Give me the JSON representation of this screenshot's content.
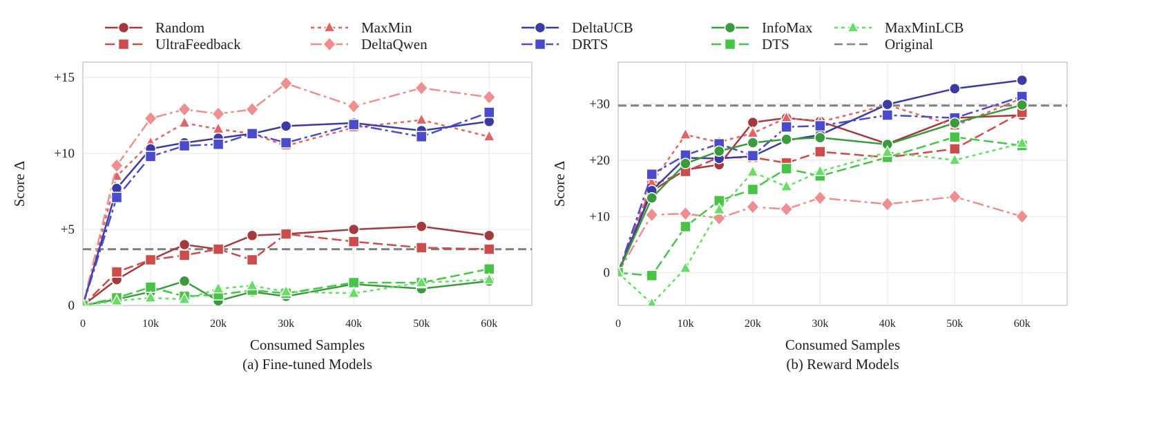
{
  "legend": {
    "entries": [
      {
        "name": "Random",
        "color": "#a33a3e",
        "dash": "",
        "marker": "circle"
      },
      {
        "name": "UltraFeedback",
        "color": "#cc4b4b",
        "dash": "14,6",
        "marker": "square"
      },
      {
        "name": "MaxMin",
        "color": "#e06464",
        "dash": "5,5",
        "marker": "triangle"
      },
      {
        "name": "DeltaQwen",
        "color": "#ef8e8e",
        "dash": "16,5,4,5",
        "marker": "diamond"
      },
      {
        "name": "DeltaUCB",
        "color": "#3b3ba3",
        "dash": "",
        "marker": "circle"
      },
      {
        "name": "DRTS",
        "color": "#4a4acd",
        "dash": "16,5,4,5",
        "marker": "square"
      },
      {
        "name": "InfoMax",
        "color": "#3b9a3b",
        "dash": "",
        "marker": "circle"
      },
      {
        "name": "DTS",
        "color": "#47c447",
        "dash": "14,6",
        "marker": "square"
      },
      {
        "name": "MaxMinLCB",
        "color": "#66dd66",
        "dash": "5,5",
        "marker": "triangle"
      },
      {
        "name": "Original",
        "color": "#808080",
        "dash": "12,6",
        "marker": "none"
      }
    ]
  },
  "chart_data": [
    {
      "type": "line",
      "caption": "(a) Fine-tuned Models",
      "xlabel": "Consumed Samples",
      "ylabel": "Score Δ",
      "xlim": [
        0,
        66300
      ],
      "ylim": [
        0,
        16
      ],
      "grid": true,
      "xticks": [
        0,
        10000,
        20000,
        30000,
        40000,
        50000,
        60000
      ],
      "xtick_labels": [
        "0",
        "10k",
        "20k",
        "30k",
        "40k",
        "50k",
        "60k"
      ],
      "yticks": [
        0,
        5,
        10,
        15
      ],
      "ytick_labels": [
        "0",
        "+5",
        "+10",
        "+15"
      ],
      "x": [
        0,
        5000,
        10000,
        15000,
        20000,
        25000,
        30000,
        40000,
        50000,
        60000
      ],
      "series": [
        {
          "name": "Random",
          "values": [
            0,
            1.7,
            3.0,
            4.0,
            3.7,
            4.6,
            4.7,
            5.0,
            5.2,
            4.6
          ]
        },
        {
          "name": "UltraFeedback",
          "values": [
            0,
            2.2,
            3.0,
            3.3,
            3.7,
            3.0,
            4.7,
            4.2,
            3.8,
            3.7
          ]
        },
        {
          "name": "MaxMin",
          "values": [
            0,
            8.5,
            10.7,
            12.0,
            11.6,
            11.3,
            10.5,
            11.7,
            12.2,
            11.1
          ]
        },
        {
          "name": "DeltaQwen",
          "values": [
            0,
            9.2,
            12.3,
            12.9,
            12.6,
            12.9,
            14.6,
            13.1,
            14.3,
            13.7
          ]
        },
        {
          "name": "DeltaUCB",
          "values": [
            0,
            7.7,
            10.3,
            10.7,
            11.0,
            11.3,
            11.8,
            12.0,
            11.5,
            12.1
          ]
        },
        {
          "name": "DRTS",
          "values": [
            0,
            7.1,
            9.8,
            10.5,
            10.6,
            11.3,
            10.7,
            11.9,
            11.1,
            12.7
          ]
        },
        {
          "name": "InfoMax",
          "values": [
            0,
            0.4,
            0.9,
            1.6,
            0.3,
            0.9,
            0.6,
            1.4,
            1.1,
            1.6
          ]
        },
        {
          "name": "DTS",
          "values": [
            0,
            0.5,
            1.2,
            0.6,
            0.7,
            1.0,
            0.8,
            1.5,
            1.5,
            2.4
          ]
        },
        {
          "name": "MaxMinLCB",
          "values": [
            0,
            0.3,
            0.5,
            0.4,
            1.1,
            1.3,
            0.9,
            0.8,
            1.5,
            1.7
          ]
        }
      ],
      "reference": {
        "name": "Original",
        "value": 3.7
      }
    },
    {
      "type": "line",
      "caption": "(b) Reward Models",
      "xlabel": "Consumed Samples",
      "ylabel": "Score Δ",
      "xlim": [
        0,
        66700
      ],
      "ylim": [
        -5.8,
        37.4
      ],
      "grid": true,
      "xticks": [
        0,
        10000,
        20000,
        30000,
        40000,
        50000,
        60000
      ],
      "xtick_labels": [
        "0",
        "10k",
        "20k",
        "30k",
        "40k",
        "50k",
        "60k"
      ],
      "yticks": [
        0,
        10,
        20,
        30
      ],
      "ytick_labels": [
        "0",
        "+10",
        "+20",
        "+30"
      ],
      "x": [
        0,
        5000,
        10000,
        15000,
        20000,
        25000,
        30000,
        40000,
        50000,
        60000
      ],
      "series": [
        {
          "name": "Random",
          "values": [
            0,
            14.5,
            18.3,
            19.2,
            26.7,
            27.5,
            26.9,
            22.9,
            27.5,
            28.0
          ]
        },
        {
          "name": "UltraFeedback",
          "values": [
            0,
            15.5,
            18.0,
            20.5,
            20.5,
            19.5,
            21.5,
            20.5,
            22.0,
            28.5
          ]
        },
        {
          "name": "MaxMin",
          "values": [
            0,
            16.0,
            24.5,
            23.2,
            24.8,
            27.5,
            26.8,
            29.8,
            26.1,
            31.0
          ]
        },
        {
          "name": "DeltaQwen",
          "values": [
            0,
            10.3,
            10.5,
            9.7,
            11.7,
            11.3,
            13.3,
            12.2,
            13.5,
            10.0
          ]
        },
        {
          "name": "DeltaUCB",
          "values": [
            0,
            14.6,
            20.4,
            20.3,
            20.7,
            23.5,
            24.5,
            29.9,
            32.7,
            34.2
          ]
        },
        {
          "name": "DRTS",
          "values": [
            0,
            17.5,
            20.9,
            22.9,
            20.8,
            25.9,
            26.1,
            28.0,
            27.5,
            31.3
          ]
        },
        {
          "name": "InfoMax",
          "values": [
            0,
            13.3,
            19.4,
            21.6,
            23.1,
            23.7,
            24.0,
            22.8,
            26.6,
            29.8
          ]
        },
        {
          "name": "DTS",
          "values": [
            0,
            -0.5,
            8.2,
            12.8,
            14.8,
            18.5,
            17.2,
            20.5,
            24.1,
            22.6
          ]
        },
        {
          "name": "MaxMinLCB",
          "values": [
            0,
            -5.5,
            0.8,
            11.2,
            17.9,
            15.3,
            18.0,
            21.4,
            20.0,
            23.0
          ]
        }
      ],
      "reference": {
        "name": "Original",
        "value": 29.7
      }
    }
  ]
}
